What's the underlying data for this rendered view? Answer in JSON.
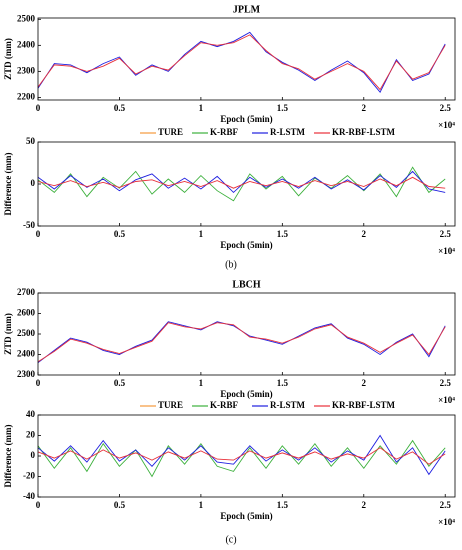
{
  "chart_data": [
    {
      "type": "line",
      "title": "JPLM",
      "ylabel": "ZTD (mm)",
      "xlabel": "Epoch (5min)",
      "x_multiplier": "×10⁴",
      "x": [
        0,
        1000,
        2000,
        3000,
        4000,
        5000,
        6000,
        7000,
        8000,
        9000,
        10000,
        11000,
        12000,
        13000,
        14000,
        15000,
        16000,
        17000,
        18000,
        19000,
        20000,
        21000,
        22000,
        23000,
        24000,
        25000
      ],
      "series": [
        {
          "color": "#1f1fe0",
          "values": [
            2235,
            2330,
            2325,
            2295,
            2330,
            2355,
            2285,
            2325,
            2300,
            2365,
            2415,
            2395,
            2415,
            2450,
            2375,
            2335,
            2305,
            2265,
            2305,
            2340,
            2295,
            2220,
            2345,
            2265,
            2290,
            2405
          ]
        },
        {
          "color": "#e8303a",
          "values": [
            2240,
            2325,
            2320,
            2300,
            2320,
            2350,
            2290,
            2320,
            2305,
            2360,
            2410,
            2400,
            2410,
            2440,
            2380,
            2330,
            2310,
            2270,
            2300,
            2330,
            2300,
            2230,
            2340,
            2270,
            2295,
            2400
          ]
        }
      ],
      "xlim": [
        0,
        25600
      ],
      "ylim": [
        2190,
        2505
      ],
      "yticks": [
        2200,
        2300,
        2400,
        2500
      ],
      "xticks": [
        0,
        {
          "value": 5000,
          "label": "0.5"
        },
        {
          "value": 10000,
          "label": "1"
        },
        {
          "value": 15000,
          "label": "1.5"
        },
        {
          "value": 20000,
          "label": "2"
        },
        {
          "value": 25000,
          "label": "2.5"
        }
      ]
    },
    {
      "type": "line",
      "ylabel": "Difference (mm)",
      "xlabel": "Epoch (5min)",
      "x_multiplier": "×10⁴",
      "caption": "(b)",
      "legend": [
        "TURE",
        "K-RBF",
        "R-LSTM",
        "KR-RBF-LSTM"
      ],
      "legend_colors": [
        "#f59a3c",
        "#3cb03c",
        "#1f1fe0",
        "#e8303a"
      ],
      "x": [
        0,
        1000,
        2000,
        3000,
        4000,
        5000,
        6000,
        7000,
        8000,
        9000,
        10000,
        11000,
        12000,
        13000,
        14000,
        15000,
        16000,
        17000,
        18000,
        19000,
        20000,
        21000,
        22000,
        23000,
        24000,
        25000
      ],
      "series": [
        {
          "color": "#3cb03c",
          "values": [
            5,
            -10,
            12,
            -15,
            8,
            -5,
            15,
            -12,
            6,
            -10,
            10,
            -8,
            -20,
            12,
            -6,
            9,
            -14,
            7,
            -5,
            10,
            -8,
            12,
            -15,
            20,
            -10,
            6
          ]
        },
        {
          "color": "#1f1fe0",
          "values": [
            8,
            -6,
            10,
            -4,
            6,
            -8,
            5,
            12,
            -5,
            7,
            -6,
            9,
            -10,
            8,
            -4,
            6,
            -5,
            8,
            -6,
            5,
            -7,
            10,
            -4,
            15,
            -6,
            -10
          ]
        },
        {
          "color": "#e8303a",
          "values": [
            3,
            -2,
            4,
            -3,
            2,
            -4,
            3,
            5,
            -2,
            3,
            -3,
            4,
            -5,
            3,
            -2,
            3,
            -3,
            4,
            -2,
            3,
            -3,
            6,
            -2,
            8,
            -3,
            -5
          ]
        }
      ],
      "xlim": [
        0,
        25600
      ],
      "ylim": [
        -50,
        50
      ],
      "yticks": [
        -50,
        0,
        50
      ],
      "xticks": [
        0,
        {
          "value": 5000,
          "label": "0.5"
        },
        {
          "value": 10000,
          "label": "1"
        },
        {
          "value": 15000,
          "label": "1.5"
        },
        {
          "value": 20000,
          "label": "2"
        },
        {
          "value": 25000,
          "label": "2.5"
        }
      ]
    },
    {
      "type": "line",
      "title": "LBCH",
      "ylabel": "ZTD (mm)",
      "xlabel": "Epoch (5min)",
      "x_multiplier": "×10⁴",
      "x": [
        0,
        1000,
        2000,
        3000,
        4000,
        5000,
        6000,
        7000,
        8000,
        9000,
        10000,
        11000,
        12000,
        13000,
        14000,
        15000,
        16000,
        17000,
        18000,
        19000,
        20000,
        21000,
        22000,
        23000,
        24000,
        25000
      ],
      "series": [
        {
          "color": "#1f1fe0",
          "values": [
            2360,
            2420,
            2480,
            2460,
            2420,
            2400,
            2440,
            2470,
            2560,
            2540,
            2520,
            2560,
            2540,
            2490,
            2470,
            2450,
            2490,
            2530,
            2550,
            2480,
            2450,
            2400,
            2460,
            2500,
            2390,
            2540
          ]
        },
        {
          "color": "#e8303a",
          "values": [
            2365,
            2415,
            2475,
            2455,
            2425,
            2405,
            2435,
            2465,
            2555,
            2535,
            2525,
            2555,
            2545,
            2485,
            2475,
            2455,
            2485,
            2525,
            2545,
            2485,
            2455,
            2410,
            2455,
            2495,
            2400,
            2535
          ]
        }
      ],
      "xlim": [
        0,
        25600
      ],
      "ylim": [
        2300,
        2700
      ],
      "yticks": [
        2300,
        2400,
        2500,
        2600,
        2700
      ],
      "xticks": [
        0,
        {
          "value": 5000,
          "label": "0.5"
        },
        {
          "value": 10000,
          "label": "1"
        },
        {
          "value": 15000,
          "label": "1.5"
        },
        {
          "value": 20000,
          "label": "2"
        },
        {
          "value": 25000,
          "label": "2.5"
        }
      ]
    },
    {
      "type": "line",
      "ylabel": "Difference (mm)",
      "xlabel": "Epoch (5min)",
      "x_multiplier": "×10⁴",
      "caption": "(c)",
      "legend": [
        "TURE",
        "K-RBF",
        "R-LSTM",
        "KR-RBF-LSTM"
      ],
      "legend_colors": [
        "#f59a3c",
        "#3cb03c",
        "#1f1fe0",
        "#e8303a"
      ],
      "x": [
        0,
        1000,
        2000,
        3000,
        4000,
        5000,
        6000,
        7000,
        8000,
        9000,
        10000,
        11000,
        12000,
        13000,
        14000,
        15000,
        16000,
        17000,
        18000,
        19000,
        20000,
        21000,
        22000,
        23000,
        24000,
        25000
      ],
      "series": [
        {
          "color": "#3cb03c",
          "values": [
            10,
            -12,
            8,
            -15,
            12,
            -10,
            6,
            -20,
            10,
            -8,
            12,
            -10,
            -15,
            8,
            -12,
            10,
            -8,
            12,
            -10,
            8,
            -12,
            10,
            -8,
            15,
            -10,
            8
          ]
        },
        {
          "color": "#1f1fe0",
          "values": [
            8,
            -5,
            10,
            -6,
            15,
            -5,
            6,
            -10,
            8,
            -4,
            10,
            -6,
            -8,
            10,
            -5,
            6,
            -4,
            8,
            -6,
            5,
            -4,
            20,
            -6,
            8,
            -18,
            5
          ]
        },
        {
          "color": "#e8303a",
          "values": [
            4,
            -2,
            5,
            -3,
            6,
            -2,
            3,
            -4,
            4,
            -2,
            5,
            -3,
            -4,
            5,
            -2,
            3,
            -2,
            4,
            -3,
            2,
            -2,
            8,
            -3,
            4,
            -8,
            2
          ]
        }
      ],
      "xlim": [
        0,
        25600
      ],
      "ylim": [
        -40,
        40
      ],
      "yticks": [
        -40,
        -20,
        0,
        20,
        40
      ],
      "xticks": [
        0,
        {
          "value": 5000,
          "label": "0.5"
        },
        {
          "value": 10000,
          "label": "1"
        },
        {
          "value": 15000,
          "label": "1.5"
        },
        {
          "value": 20000,
          "label": "2"
        },
        {
          "value": 25000,
          "label": "2.5"
        }
      ]
    }
  ]
}
